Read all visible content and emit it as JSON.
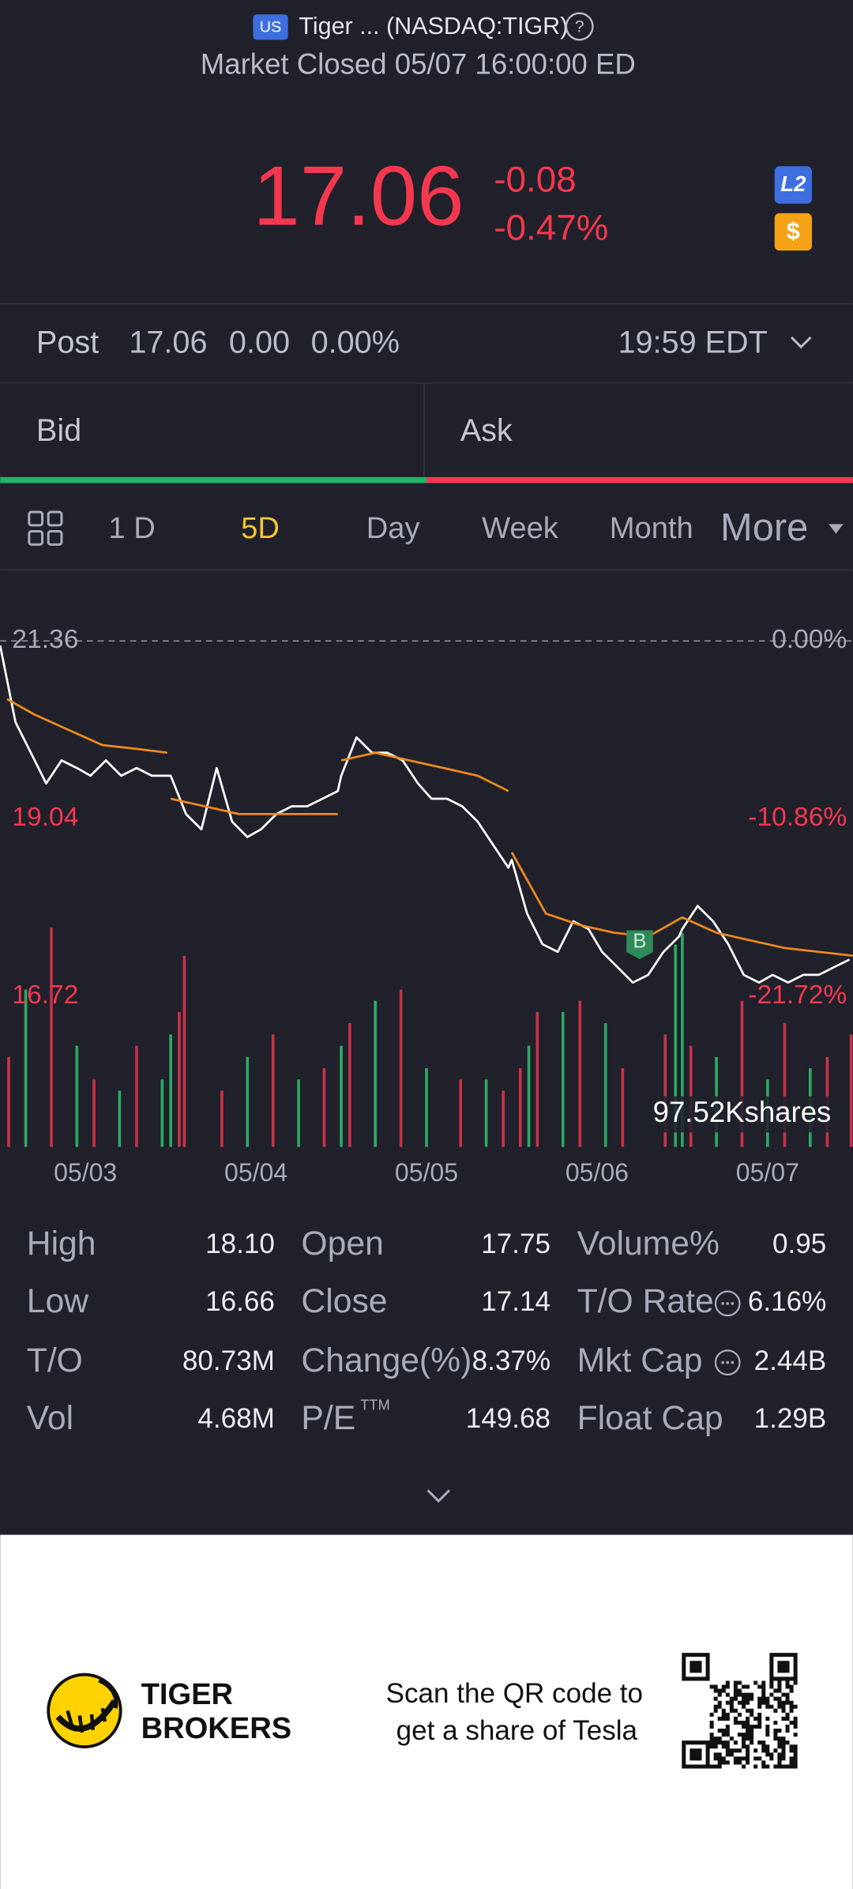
{
  "header": {
    "market_badge": "US",
    "title": "Tiger ... (NASDAQ:TIGR)",
    "help": "?",
    "status": "Market Closed 05/07 16:00:00 ED"
  },
  "quote": {
    "price": "17.06",
    "change": "-0.08",
    "change_pct": "-0.47%",
    "level_badge": "L2",
    "currency_badge": "$"
  },
  "post": {
    "label": "Post",
    "price": "17.06",
    "change": "0.00",
    "change_pct": "0.00%",
    "time": "19:59 EDT"
  },
  "order_book": {
    "bid": "Bid",
    "ask": "Ask"
  },
  "tabs": {
    "items": [
      "1 D",
      "5D",
      "Day",
      "Week",
      "Month",
      "More"
    ],
    "active": 1
  },
  "chart_data": {
    "type": "line",
    "xlim": [
      0,
      5
    ],
    "xticks": [
      {
        "value": 0.5,
        "label": "05/03"
      },
      {
        "value": 1.5,
        "label": "05/04"
      },
      {
        "value": 2.5,
        "label": "05/05"
      },
      {
        "value": 3.5,
        "label": "05/06"
      },
      {
        "value": 4.5,
        "label": "05/07"
      }
    ],
    "ylim": [
      16.72,
      21.36
    ],
    "yticks": [
      21.36,
      19.04,
      16.72
    ],
    "y2lim": [
      -21.72,
      0
    ],
    "y2ticks": [
      {
        "value": 0,
        "label": "0.00%"
      },
      {
        "value": -10.86,
        "label": "-10.86%"
      },
      {
        "value": -21.72,
        "label": "-21.72%"
      }
    ],
    "series": [
      {
        "color": "#ffffff",
        "x": [
          0,
          0.09,
          0.18,
          0.27,
          0.36,
          0.45,
          0.53,
          0.62,
          0.71,
          0.8,
          0.89,
          0.98,
          1,
          1.09,
          1.18,
          1.27,
          1.36,
          1.45,
          1.53,
          1.62,
          1.71,
          1.8,
          1.89,
          1.98,
          2,
          2.09,
          2.18,
          2.27,
          2.36,
          2.45,
          2.53,
          2.62,
          2.71,
          2.8,
          2.89,
          2.98,
          3,
          3.09,
          3.18,
          3.27,
          3.36,
          3.45,
          3.53,
          3.62,
          3.71,
          3.8,
          3.89,
          3.98,
          4,
          4.09,
          4.18,
          4.27,
          4.36,
          4.45,
          4.53,
          4.62,
          4.71,
          4.8,
          4.89,
          4.98
        ],
        "values": [
          21.3,
          20.3,
          19.9,
          19.5,
          19.8,
          19.7,
          19.6,
          19.8,
          19.6,
          19.7,
          19.6,
          19.6,
          19.6,
          19.1,
          18.9,
          19.7,
          19.0,
          18.8,
          18.9,
          19.1,
          19.2,
          19.2,
          19.3,
          19.4,
          19.6,
          20.1,
          19.9,
          19.9,
          19.8,
          19.5,
          19.3,
          19.3,
          19.2,
          19.0,
          18.7,
          18.4,
          18.5,
          17.8,
          17.4,
          17.3,
          17.7,
          17.6,
          17.3,
          17.1,
          16.9,
          17.0,
          17.3,
          17.5,
          17.6,
          17.9,
          17.7,
          17.4,
          17.0,
          16.9,
          17.0,
          16.9,
          17.0,
          17.0,
          17.1,
          17.2
        ]
      },
      {
        "color": "#f08a1c",
        "x": [
          0.04,
          0.2,
          0.4,
          0.6,
          0.8,
          0.98,
          null,
          1.0,
          1.2,
          1.4,
          1.6,
          1.8,
          1.98,
          null,
          2.0,
          2.2,
          2.4,
          2.6,
          2.8,
          2.98,
          null,
          3.0,
          3.2,
          3.4,
          3.6,
          3.8,
          4.0,
          4.2,
          4.4,
          4.6,
          4.8,
          5.0
        ],
        "values": [
          20.6,
          20.4,
          20.2,
          20.0,
          19.95,
          19.9,
          null,
          19.3,
          19.2,
          19.1,
          19.1,
          19.1,
          19.1,
          null,
          19.8,
          19.9,
          19.8,
          19.7,
          19.6,
          19.4,
          null,
          18.6,
          17.8,
          17.65,
          17.55,
          17.5,
          17.75,
          17.55,
          17.45,
          17.35,
          17.3,
          17.25
        ]
      }
    ],
    "marker": {
      "label": "B",
      "x": 3.75,
      "value": 17.22,
      "color": "#2e8b57"
    },
    "volume": {
      "ylim": [
        0,
        97.52
      ],
      "yticks": [
        {
          "value": 97.52,
          "label": "97.52Kshares"
        }
      ],
      "series": [
        {
          "color": "#c8334a",
          "x": [
            0.05,
            0.3,
            0.55,
            0.8,
            1.05,
            1.08,
            1.3,
            1.6,
            1.9,
            2.05,
            2.35,
            2.7,
            2.95,
            3.05,
            3.15,
            3.4,
            3.65,
            3.9,
            4.05,
            4.35,
            4.6,
            4.85,
            4.99
          ],
          "values": [
            40,
            97.52,
            30,
            45,
            60,
            85,
            25,
            50,
            35,
            55,
            70,
            30,
            25,
            35,
            60,
            65,
            35,
            50,
            45,
            65,
            55,
            40,
            50
          ]
        },
        {
          "color": "#2fa864",
          "x": [
            0.15,
            0.45,
            0.7,
            0.95,
            1.0,
            1.45,
            1.75,
            2.0,
            2.2,
            2.5,
            2.85,
            3.1,
            3.3,
            3.55,
            3.96,
            4.0,
            4.2,
            4.5,
            4.75
          ],
          "values": [
            70,
            45,
            25,
            30,
            50,
            40,
            30,
            45,
            65,
            35,
            30,
            45,
            60,
            55,
            90,
            95,
            40,
            30,
            35
          ]
        }
      ]
    }
  },
  "stats": {
    "rows": [
      [
        {
          "label": "High",
          "value": "18.10"
        },
        {
          "label": "Open",
          "value": "17.75"
        },
        {
          "label": "Volume%",
          "value": "0.95"
        }
      ],
      [
        {
          "label": "Low",
          "value": "16.66"
        },
        {
          "label": "Close",
          "value": "17.14"
        },
        {
          "label": "T/O Rate",
          "value": "6.16%",
          "info": true
        }
      ],
      [
        {
          "label": "T/O",
          "value": "80.73M"
        },
        {
          "label": "Change(%)",
          "value": "8.37%"
        },
        {
          "label": "Mkt Cap",
          "value": "2.44B",
          "info": true
        }
      ],
      [
        {
          "label": "Vol",
          "value": "4.68M"
        },
        {
          "label": "P/E",
          "sup": "TTM",
          "value": "149.68"
        },
        {
          "label": "Float Cap",
          "value": "1.29B"
        }
      ]
    ]
  },
  "footer": {
    "brand": [
      "TIGER",
      "BROKERS"
    ],
    "promo": [
      "Scan the QR code to",
      "get a share of Tesla"
    ]
  }
}
